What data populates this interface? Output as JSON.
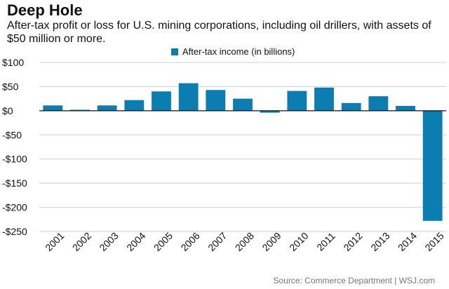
{
  "header": {
    "title": "Deep Hole",
    "subtitle": "After-tax profit or loss for U.S. mining corporations, including oil drillers, with assets of $50 million or more."
  },
  "footer": {
    "source": "Source: Commerce Department  |  WSJ.com"
  },
  "colors": {
    "bar": "#0b7db0",
    "axis": "#111111",
    "grid": "#cfcfcf"
  },
  "chart_data": {
    "type": "bar",
    "title": "Deep Hole",
    "subtitle": "After-tax profit or loss for U.S. mining corporations, including oil drillers, with assets of $50 million or more.",
    "categories": [
      "2001",
      "2002",
      "2003",
      "2004",
      "2005",
      "2006",
      "2007",
      "2008",
      "2009",
      "2010",
      "2011",
      "2012",
      "2013",
      "2014",
      "2015"
    ],
    "series": [
      {
        "name": "After-tax income (in billions)",
        "values": [
          11,
          2,
          11,
          22,
          40,
          57,
          43,
          25,
          -4,
          41,
          48,
          16,
          30,
          10,
          -228
        ]
      }
    ],
    "ylim": [
      -250,
      100
    ],
    "yticks": [
      100,
      50,
      0,
      -50,
      -100,
      -150,
      -200,
      -250
    ],
    "ytick_labels": [
      "$100",
      "$50",
      "$0",
      "-$50",
      "-$100",
      "-$150",
      "-$200",
      "-$250"
    ],
    "xlabel": "",
    "ylabel": "",
    "grid": true,
    "legend": "top-center",
    "source": "Source: Commerce Department  |  WSJ.com"
  }
}
